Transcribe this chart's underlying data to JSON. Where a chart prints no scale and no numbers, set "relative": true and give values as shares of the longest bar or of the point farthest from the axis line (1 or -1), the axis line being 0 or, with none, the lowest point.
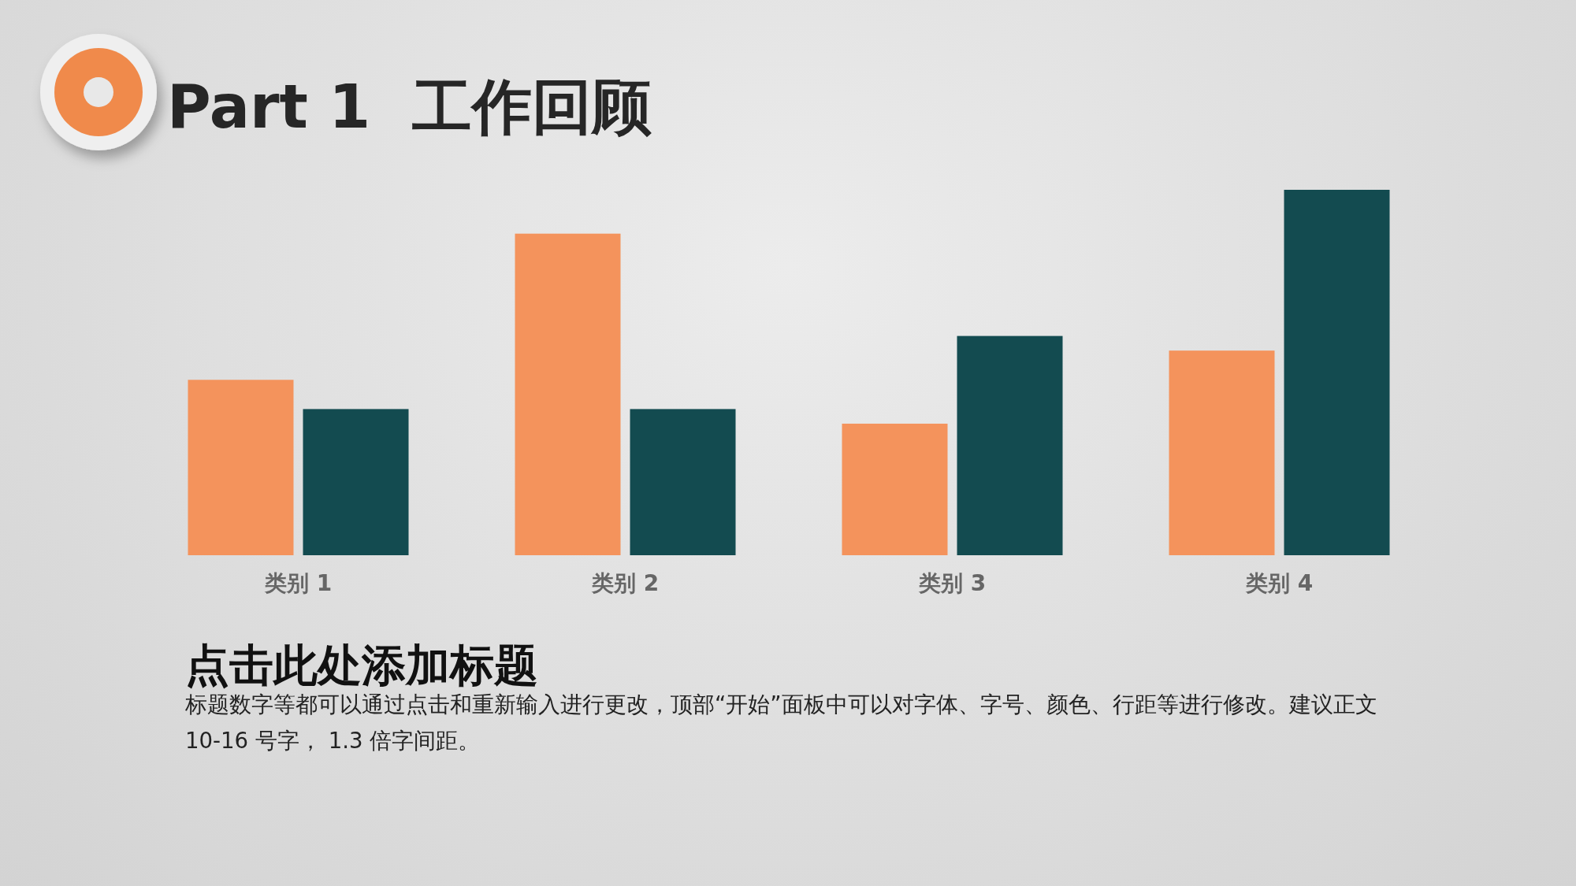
{
  "chart_data": {
    "type": "bar",
    "relative": true,
    "title": "Part 1  工作回顾",
    "categories": [
      "类别 1",
      "类别 2",
      "类别 3",
      "类别 4"
    ],
    "series": [
      {
        "color": "#f4935c",
        "values": [
          0.48,
          0.88,
          0.36,
          0.56
        ]
      },
      {
        "color": "#134b50",
        "values": [
          0.4,
          0.4,
          0.6,
          1
        ]
      }
    ],
    "annotations": [
      "点击此处添加标题",
      "标题数字等都可以通过点击和重新输入进行更改，顶部“开始”面板中可以对字体、字号、颜色、行距等进行修改。建议正文 10-16 号字， 1.3 倍字间距。"
    ]
  }
}
